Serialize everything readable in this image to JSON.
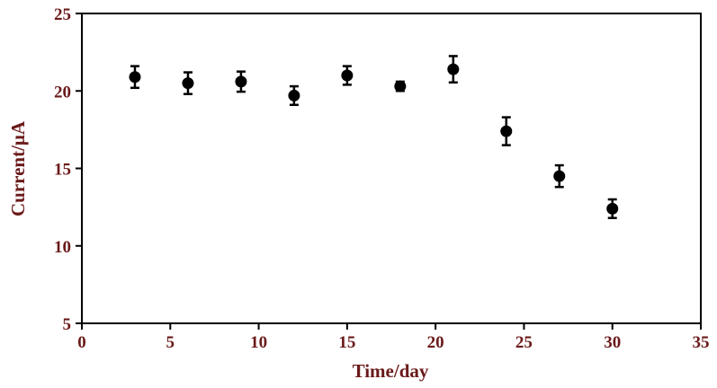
{
  "chart_data": {
    "type": "scatter",
    "title": "",
    "xlabel": "Time/day",
    "ylabel": "Current/μA",
    "xlim": [
      0,
      35
    ],
    "ylim": [
      5,
      25
    ],
    "xticks": [
      0,
      5,
      10,
      15,
      20,
      25,
      30,
      35
    ],
    "yticks": [
      5,
      10,
      15,
      20,
      25
    ],
    "grid": false,
    "legend": "none",
    "marker_color": "#000000",
    "label_color": "#6b1a1a",
    "points": [
      {
        "x": 3,
        "y": 20.9,
        "err": 0.7
      },
      {
        "x": 6,
        "y": 20.5,
        "err": 0.7
      },
      {
        "x": 9,
        "y": 20.6,
        "err": 0.65
      },
      {
        "x": 12,
        "y": 19.7,
        "err": 0.6
      },
      {
        "x": 15,
        "y": 21.0,
        "err": 0.6
      },
      {
        "x": 18,
        "y": 20.3,
        "err": 0.3
      },
      {
        "x": 21,
        "y": 21.4,
        "err": 0.85
      },
      {
        "x": 24,
        "y": 17.4,
        "err": 0.9
      },
      {
        "x": 27,
        "y": 14.5,
        "err": 0.7
      },
      {
        "x": 30,
        "y": 12.4,
        "err": 0.6
      }
    ]
  }
}
